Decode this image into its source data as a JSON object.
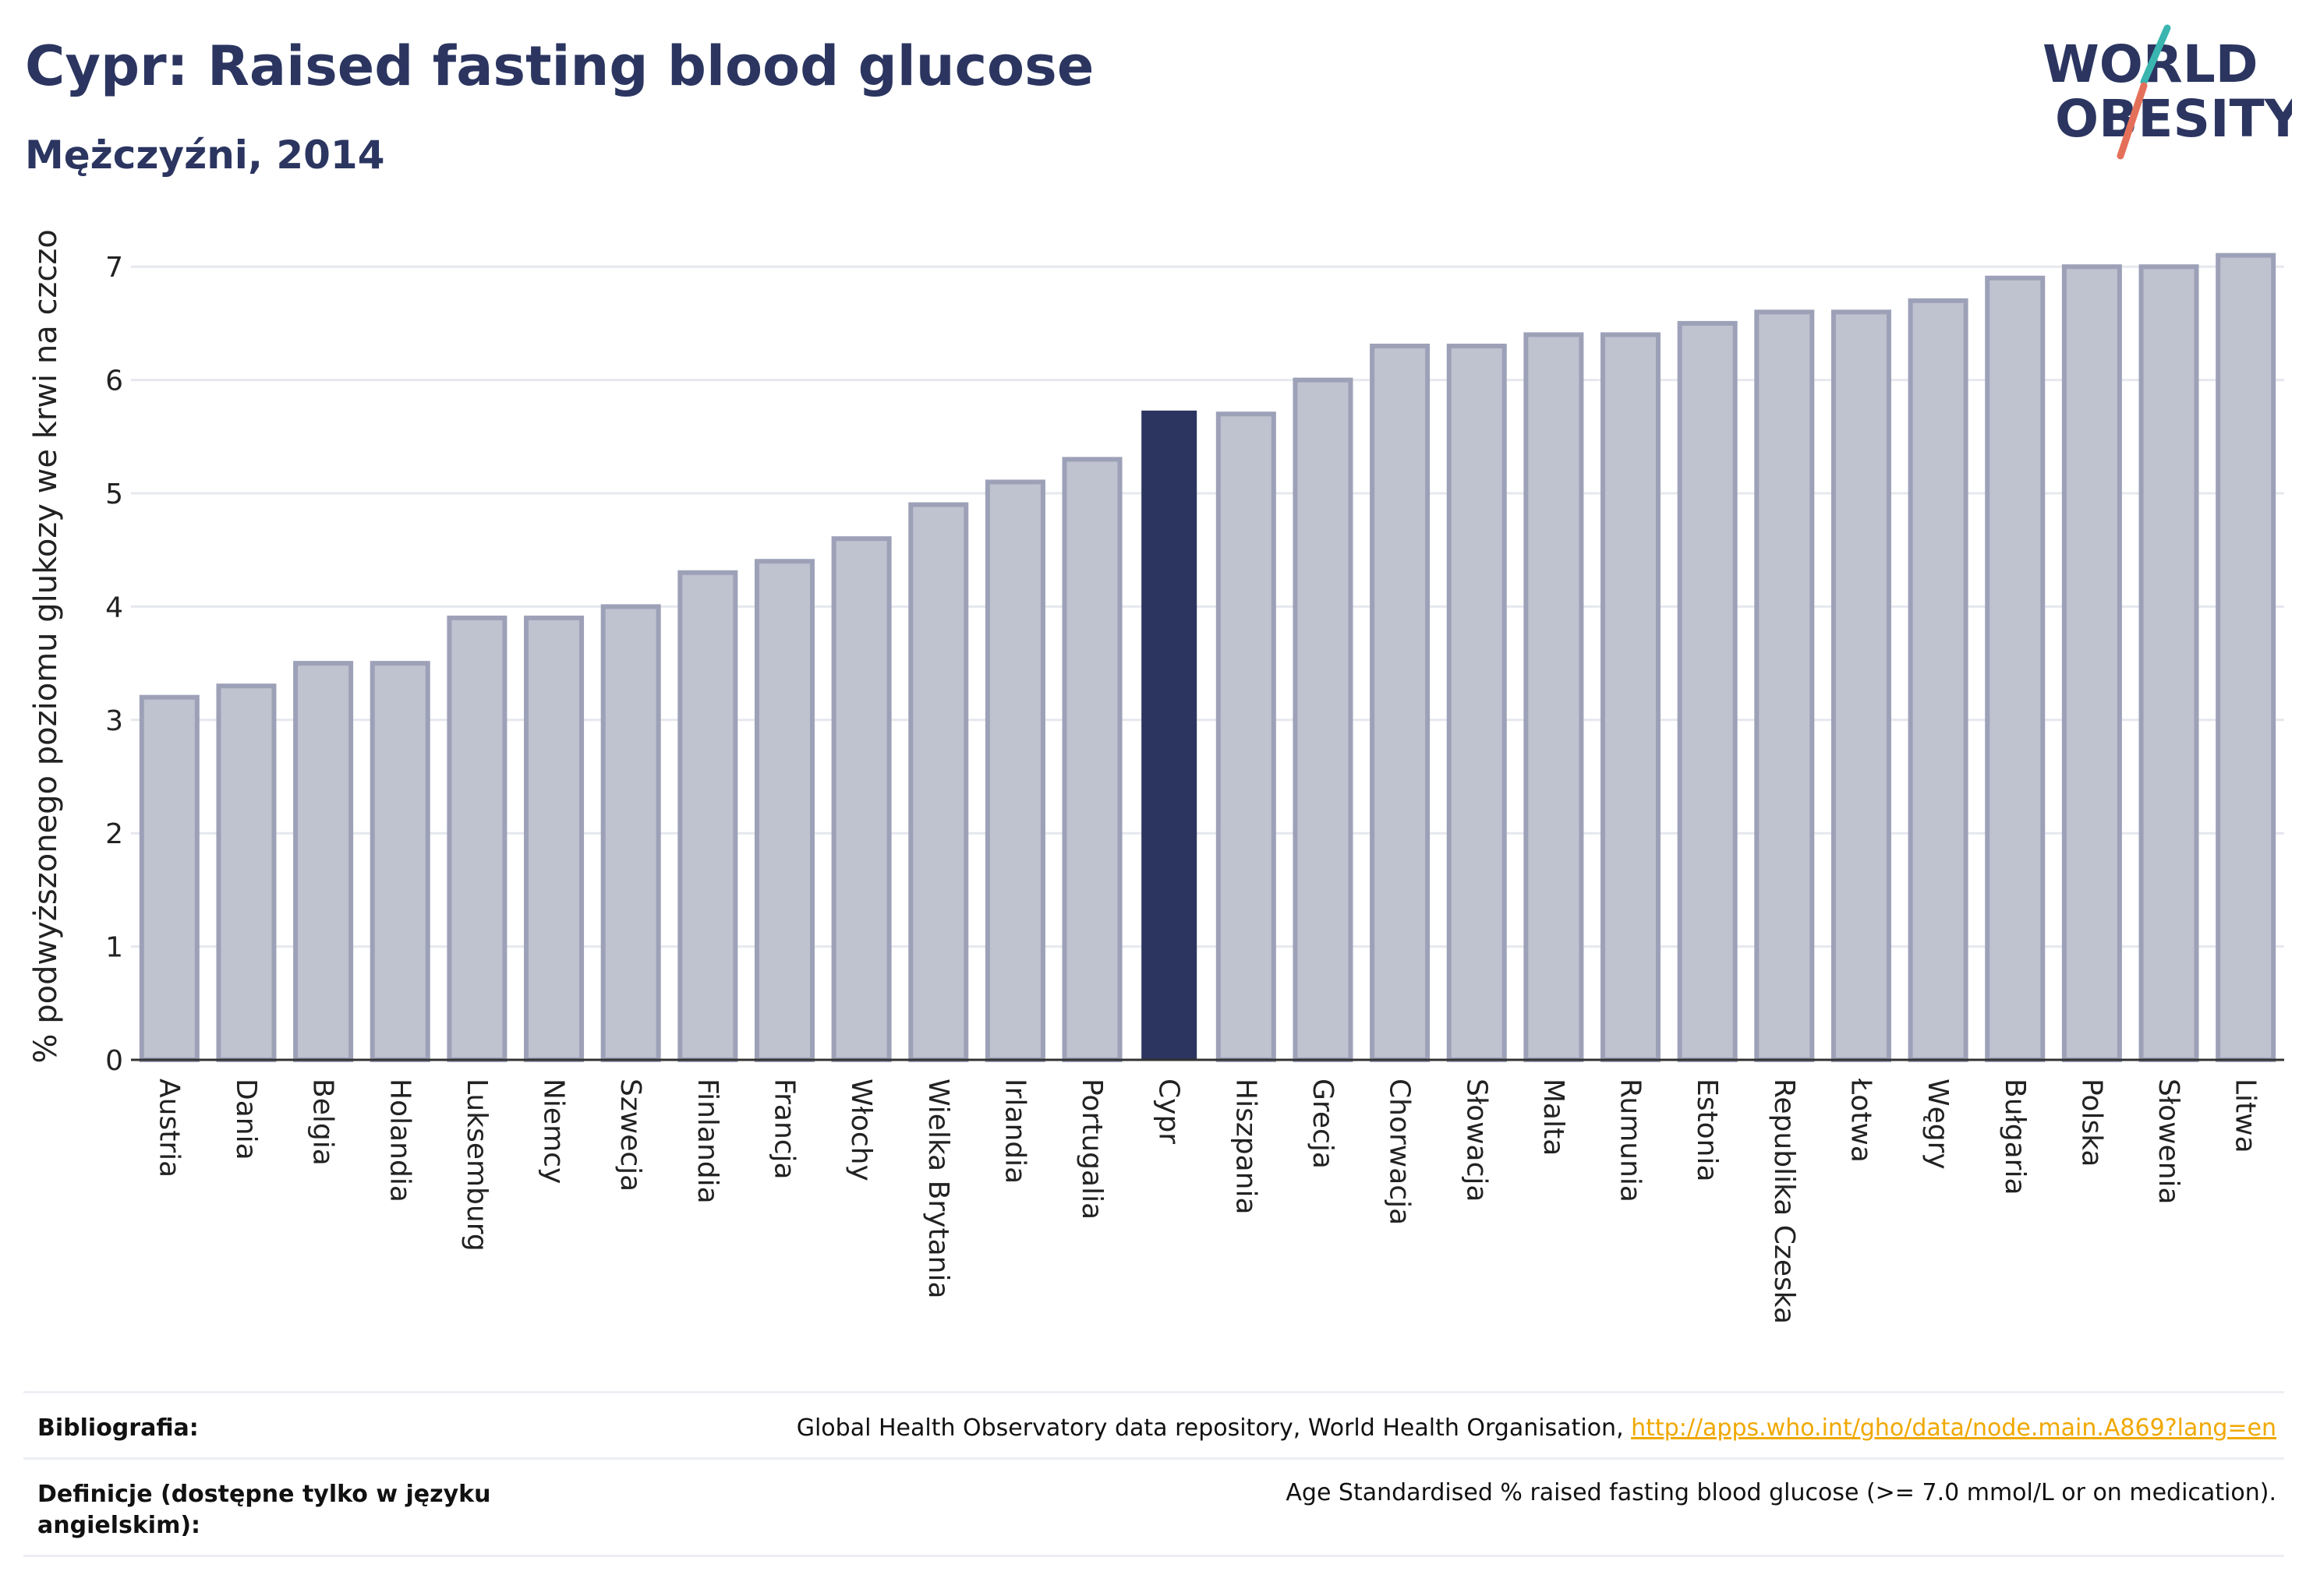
{
  "header": {
    "title": "Cypr: Raised fasting blood glucose",
    "subtitle": "Mężczyźni, 2014"
  },
  "logo": {
    "line1": "WORLD",
    "line2": "OBESITY",
    "colors": {
      "text": "#2b3560",
      "accent_teal": "#3bb5b0",
      "accent_coral": "#e5705a"
    }
  },
  "chart_data": {
    "type": "bar",
    "ylabel": "% podwyższonego poziomu glukozy we krwi na czczo",
    "xlabel": "",
    "ylim": [
      0,
      7.3
    ],
    "yticks": [
      0,
      1,
      2,
      3,
      4,
      5,
      6,
      7
    ],
    "grid": true,
    "highlight": "Cypr",
    "colors": {
      "bar_fill": "#bfc2cf",
      "bar_stroke": "#9da1b8",
      "highlight": "#2b3560"
    },
    "categories": [
      "Austria",
      "Dania",
      "Belgia",
      "Holandia",
      "Luksemburg",
      "Niemcy",
      "Szwecja",
      "Finlandia",
      "Francja",
      "Włochy",
      "Wielka Brytania",
      "Irlandia",
      "Portugalia",
      "Cypr",
      "Hiszpania",
      "Grecja",
      "Chorwacja",
      "Słowacja",
      "Malta",
      "Rumunia",
      "Estonia",
      "Republika Czeska",
      "Łotwa",
      "Węgry",
      "Bułgaria",
      "Polska",
      "Słowenia",
      "Litwa"
    ],
    "values": [
      3.2,
      3.3,
      3.5,
      3.5,
      3.9,
      3.9,
      4.0,
      4.3,
      4.4,
      4.6,
      4.9,
      5.1,
      5.3,
      5.73,
      5.7,
      6.0,
      6.3,
      6.3,
      6.4,
      6.4,
      6.5,
      6.6,
      6.6,
      6.7,
      6.9,
      7.0,
      7.0,
      7.1
    ]
  },
  "footer": {
    "bibliography_label": "Bibliografia:",
    "bibliography_text": "Global Health Observatory data repository, World Health Organisation, ",
    "bibliography_link": "http://apps.who.int/gho/data/node.main.A869?lang=en",
    "definition_label": "Definicje (dostępne tylko w języku angielskim):",
    "definition_text": "Age Standardised % raised fasting blood glucose (>= 7.0 mmol/L or on medication)."
  }
}
